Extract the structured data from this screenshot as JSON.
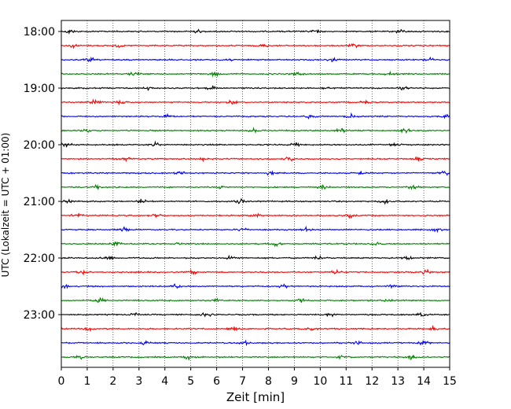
{
  "chart_data": {
    "type": "line",
    "title": "",
    "xlabel": "Zeit  [min]",
    "ylabel": "UTC (Lokalzeit = UTC + 01:00)",
    "xlim": [
      0,
      15
    ],
    "x_ticks": [
      0,
      1,
      2,
      3,
      4,
      5,
      6,
      7,
      8,
      9,
      10,
      11,
      12,
      13,
      14,
      15
    ],
    "x_tick_labels": [
      "0",
      "1",
      "2",
      "3",
      "4",
      "5",
      "6",
      "7",
      "8",
      "9",
      "10",
      "11",
      "12",
      "13",
      "14",
      "15"
    ],
    "y_tick_labels": [
      "18:00",
      "19:00",
      "20:00",
      "21:00",
      "22:00",
      "23:00"
    ],
    "y_tick_trace_index": [
      0,
      4,
      8,
      12,
      16,
      20
    ],
    "grid_x": "dotted vertical at each minute",
    "legend": "none",
    "trace_interval_min": 15,
    "trace_color_cycle": [
      "#000000",
      "#ff0000",
      "#0000ff",
      "#008000"
    ],
    "series": [
      {
        "start": "18:00",
        "color": "#000000",
        "bursts": [
          0.3,
          5.2,
          9.8,
          13.1
        ]
      },
      {
        "start": "18:15",
        "color": "#ff0000",
        "bursts": [
          0.4,
          2.2,
          7.8,
          11.3
        ]
      },
      {
        "start": "18:30",
        "color": "#0000ff",
        "bursts": [
          1.1,
          6.4,
          10.5,
          14.2
        ]
      },
      {
        "start": "18:45",
        "color": "#008000",
        "bursts": [
          2.8,
          5.9,
          9.1,
          12.7
        ]
      },
      {
        "start": "19:00",
        "color": "#000000",
        "bursts": [
          3.4,
          5.8,
          10.2,
          13.2
        ]
      },
      {
        "start": "19:15",
        "color": "#ff0000",
        "bursts": [
          1.3,
          2.3,
          6.6,
          11.7
        ]
      },
      {
        "start": "19:30",
        "color": "#0000ff",
        "bursts": [
          4.1,
          9.6,
          11.2,
          14.9
        ]
      },
      {
        "start": "19:45",
        "color": "#008000",
        "bursts": [
          0.9,
          7.4,
          10.8,
          13.3
        ]
      },
      {
        "start": "20:00",
        "color": "#000000",
        "bursts": [
          0.2,
          3.6,
          9.0,
          12.9
        ]
      },
      {
        "start": "20:15",
        "color": "#ff0000",
        "bursts": [
          2.5,
          5.4,
          8.8,
          13.8
        ]
      },
      {
        "start": "20:30",
        "color": "#0000ff",
        "bursts": [
          4.6,
          8.1,
          11.6,
          14.8
        ]
      },
      {
        "start": "20:45",
        "color": "#008000",
        "bursts": [
          1.4,
          6.2,
          10.1,
          13.6
        ]
      },
      {
        "start": "21:00",
        "color": "#000000",
        "bursts": [
          0.3,
          3.1,
          6.9,
          12.5
        ]
      },
      {
        "start": "21:15",
        "color": "#ff0000",
        "bursts": [
          0.6,
          3.7,
          7.5,
          11.1
        ]
      },
      {
        "start": "21:30",
        "color": "#0000ff",
        "bursts": [
          2.4,
          7.0,
          9.5,
          14.5
        ]
      },
      {
        "start": "21:45",
        "color": "#008000",
        "bursts": [
          2.1,
          4.6,
          8.3,
          12.2
        ]
      },
      {
        "start": "22:00",
        "color": "#000000",
        "bursts": [
          1.8,
          6.5,
          9.9,
          13.4
        ]
      },
      {
        "start": "22:15",
        "color": "#ff0000",
        "bursts": [
          0.8,
          5.1,
          10.6,
          14.1
        ]
      },
      {
        "start": "22:30",
        "color": "#0000ff",
        "bursts": [
          0.1,
          4.4,
          8.6,
          12.8
        ]
      },
      {
        "start": "22:45",
        "color": "#008000",
        "bursts": [
          1.5,
          6.0,
          9.3,
          12.6
        ]
      },
      {
        "start": "23:00",
        "color": "#000000",
        "bursts": [
          2.9,
          5.6,
          10.4,
          13.9
        ]
      },
      {
        "start": "23:15",
        "color": "#ff0000",
        "bursts": [
          1.1,
          6.6,
          9.7,
          14.4
        ]
      },
      {
        "start": "23:30",
        "color": "#0000ff",
        "bursts": [
          3.2,
          7.1,
          11.4,
          14.0
        ]
      },
      {
        "start": "23:45",
        "color": "#008000",
        "bursts": [
          0.7,
          4.9,
          10.9,
          13.5
        ]
      }
    ]
  }
}
